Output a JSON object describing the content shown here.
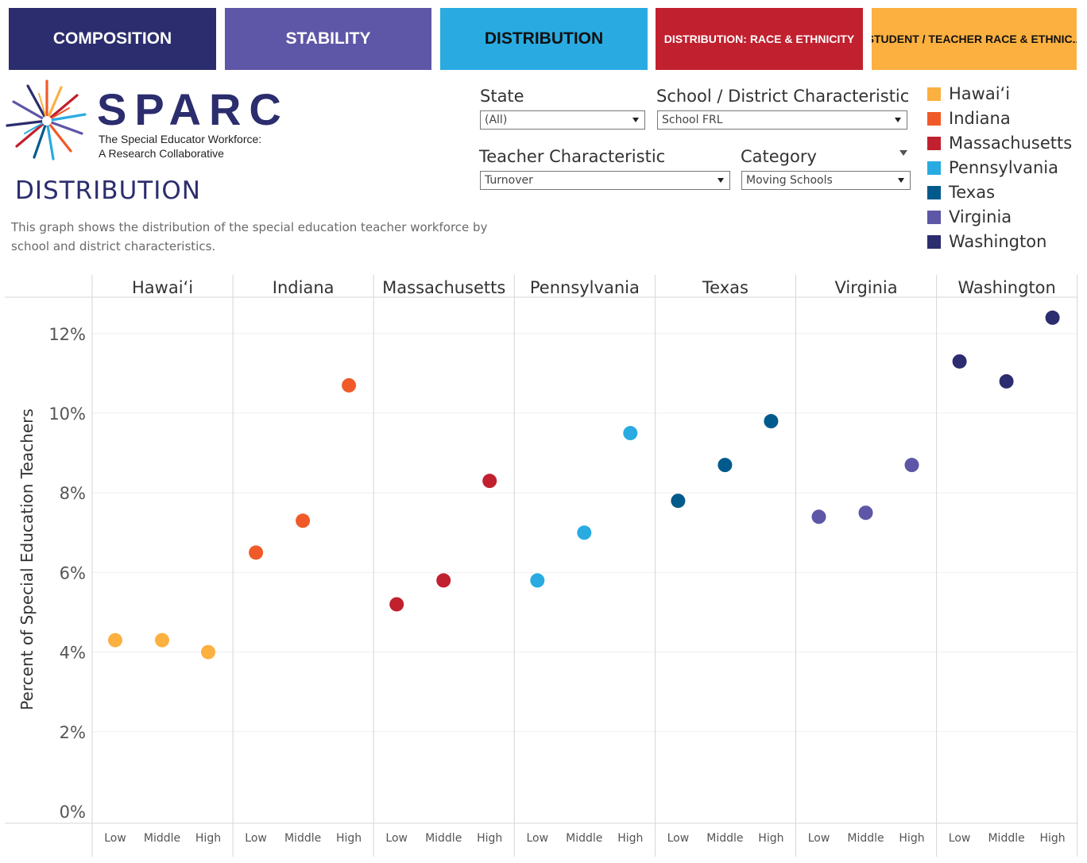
{
  "tabs": [
    {
      "label": "COMPOSITION",
      "bg": "#2b2d6e",
      "fg": "#ffffff",
      "size": "big"
    },
    {
      "label": "STABILITY",
      "bg": "#5e56a6",
      "fg": "#ffffff",
      "size": "big"
    },
    {
      "label": "DISTRIBUTION",
      "bg": "#29abe2",
      "fg": "#111111",
      "size": "big"
    },
    {
      "label": "DISTRIBUTION: RACE & ETHNICITY",
      "bg": "#c1202e",
      "fg": "#ffffff",
      "size": "small"
    },
    {
      "label": "STUDENT / TEACHER RACE & ETHNIC...",
      "bg": "#fbb040",
      "fg": "#111111",
      "size": "small"
    }
  ],
  "logo": {
    "word": "SPARC",
    "line1": "The Special Educator Workforce:",
    "line2": "A Research Collaborative"
  },
  "page_title": "DISTRIBUTION",
  "description": "This graph shows the distribution of the special education teacher workforce by school and district characteristics.",
  "filters": {
    "state": {
      "label": "State",
      "value": "(All)"
    },
    "school_char": {
      "label": "School / District Characteristic",
      "value": "School FRL"
    },
    "teacher_char": {
      "label": "Teacher Characteristic",
      "value": "Turnover"
    },
    "category": {
      "label": "Category",
      "value": "Moving Schools"
    }
  },
  "legend": [
    {
      "label": "Hawaiʻi",
      "color": "#fbb040"
    },
    {
      "label": "Indiana",
      "color": "#f05a28"
    },
    {
      "label": "Massachusetts",
      "color": "#c1202e"
    },
    {
      "label": "Pennsylvania",
      "color": "#29abe2"
    },
    {
      "label": "Texas",
      "color": "#005a8c"
    },
    {
      "label": "Virginia",
      "color": "#5e56a6"
    },
    {
      "label": "Washington",
      "color": "#2b2d6e"
    }
  ],
  "chart_data": {
    "type": "scatter",
    "ylabel": "Percent of Special Education Teachers",
    "ylim": [
      0,
      13
    ],
    "yticks": [
      "0%",
      "2%",
      "4%",
      "6%",
      "8%",
      "10%",
      "12%"
    ],
    "categories": [
      "Low",
      "Middle",
      "High"
    ],
    "grid": true,
    "series": [
      {
        "name": "Hawaiʻi",
        "color": "#fbb040",
        "values": [
          4.3,
          4.3,
          4.0
        ]
      },
      {
        "name": "Indiana",
        "color": "#f05a28",
        "values": [
          6.5,
          7.3,
          10.7
        ]
      },
      {
        "name": "Massachusetts",
        "color": "#c1202e",
        "values": [
          5.2,
          5.8,
          8.3
        ]
      },
      {
        "name": "Pennsylvania",
        "color": "#29abe2",
        "values": [
          5.8,
          7.0,
          9.5
        ]
      },
      {
        "name": "Texas",
        "color": "#005a8c",
        "values": [
          7.8,
          8.7,
          9.8
        ]
      },
      {
        "name": "Virginia",
        "color": "#5e56a6",
        "values": [
          7.4,
          7.5,
          8.7
        ]
      },
      {
        "name": "Washington",
        "color": "#2b2d6e",
        "values": [
          11.3,
          10.8,
          12.4
        ]
      }
    ]
  }
}
